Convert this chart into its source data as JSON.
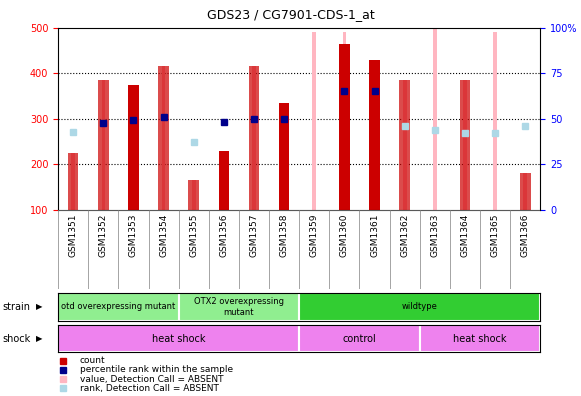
{
  "title": "GDS23 / CG7901-CDS-1_at",
  "samples": [
    "GSM1351",
    "GSM1352",
    "GSM1353",
    "GSM1354",
    "GSM1355",
    "GSM1356",
    "GSM1357",
    "GSM1358",
    "GSM1359",
    "GSM1360",
    "GSM1361",
    "GSM1362",
    "GSM1363",
    "GSM1364",
    "GSM1365",
    "GSM1366"
  ],
  "pink_bar_heights": [
    225,
    385,
    null,
    415,
    165,
    null,
    415,
    null,
    490,
    490,
    null,
    385,
    500,
    385,
    490,
    180
  ],
  "count_values": [
    null,
    null,
    375,
    null,
    null,
    230,
    null,
    335,
    null,
    465,
    430,
    null,
    null,
    null,
    null,
    null
  ],
  "count_absent_values": [
    225,
    385,
    null,
    415,
    165,
    null,
    415,
    null,
    null,
    null,
    null,
    385,
    null,
    385,
    null,
    180
  ],
  "blue_square_values": [
    null,
    290,
    297,
    303,
    null,
    292,
    300,
    300,
    null,
    362,
    362,
    null,
    null,
    null,
    null,
    null
  ],
  "light_blue_values": [
    270,
    null,
    null,
    null,
    250,
    null,
    null,
    null,
    null,
    null,
    null,
    285,
    275,
    268,
    268,
    285
  ],
  "ylim_left": [
    100,
    500
  ],
  "ylim_right": [
    0,
    100
  ],
  "yticks_left": [
    100,
    200,
    300,
    400,
    500
  ],
  "yticks_right": [
    0,
    25,
    50,
    75,
    100
  ],
  "count_color": "#cc0000",
  "count_absent_color": "#cc0000",
  "absent_bar_color": "#ffb6c1",
  "blue_color": "#00008b",
  "light_blue_color": "#add8e6",
  "strain_groups": [
    {
      "label": "otd overexpressing mutant",
      "start": 0,
      "end": 4,
      "color": "#90ee90"
    },
    {
      "label": "OTX2 overexpressing\nmutant",
      "start": 4,
      "end": 8,
      "color": "#90ee90"
    },
    {
      "label": "wildtype",
      "start": 8,
      "end": 16,
      "color": "#32cd32"
    }
  ],
  "shock_groups": [
    {
      "label": "heat shock",
      "start": 0,
      "end": 8,
      "color": "#ee82ee"
    },
    {
      "label": "control",
      "start": 8,
      "end": 12,
      "color": "#ee82ee"
    },
    {
      "label": "heat shock",
      "start": 12,
      "end": 16,
      "color": "#ee82ee"
    }
  ],
  "legend_items": [
    {
      "label": "count",
      "color": "#cc0000",
      "marker": "s"
    },
    {
      "label": "percentile rank within the sample",
      "color": "#00008b",
      "marker": "s"
    },
    {
      "label": "value, Detection Call = ABSENT",
      "color": "#ffb6c1",
      "marker": "s"
    },
    {
      "label": "rank, Detection Call = ABSENT",
      "color": "#add8e6",
      "marker": "s"
    }
  ]
}
